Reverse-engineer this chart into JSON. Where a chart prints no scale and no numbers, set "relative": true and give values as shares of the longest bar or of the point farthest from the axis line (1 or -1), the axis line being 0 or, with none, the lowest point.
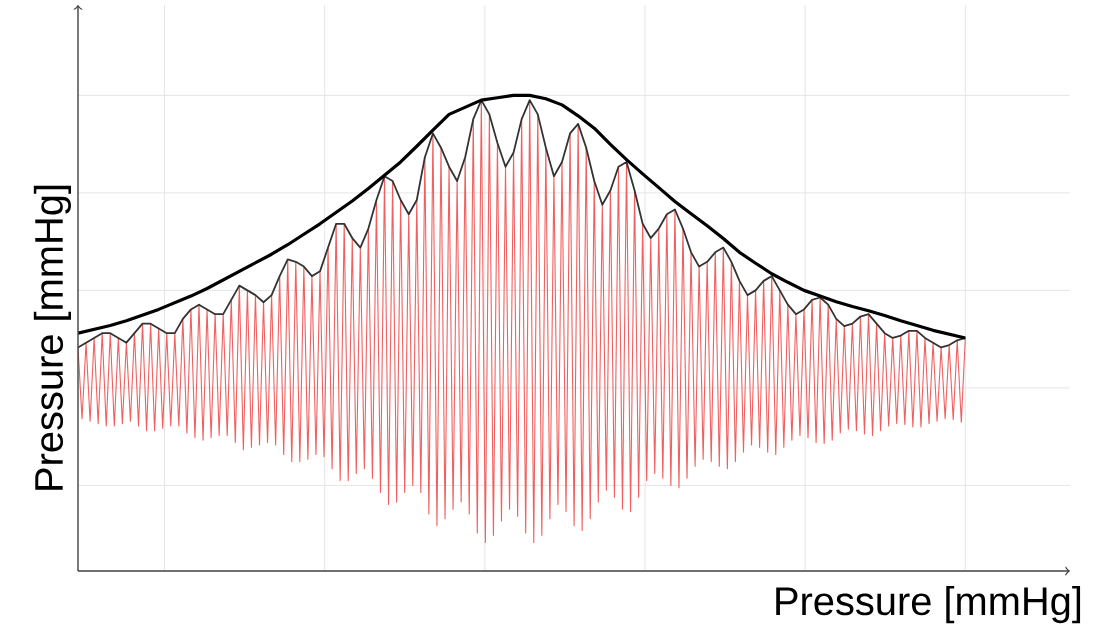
{
  "chart_data": {
    "type": "line",
    "relative": true,
    "grid": true,
    "tick_labels": false,
    "marker": "none",
    "xlabel": "Pressure [mmHg]",
    "ylabel": "Pressure [mmHg]",
    "categories": [
      null,
      null,
      null,
      null,
      null,
      null,
      null,
      null,
      null,
      null,
      null,
      null,
      null,
      null,
      null,
      null,
      null,
      null,
      null,
      null,
      null,
      null,
      null,
      null,
      null,
      null,
      null,
      null,
      null,
      null,
      null,
      null,
      null,
      null,
      null,
      null,
      null,
      null,
      null,
      null,
      null,
      null,
      null,
      null,
      null,
      null,
      null,
      null,
      null,
      null,
      null,
      null,
      null,
      null,
      null,
      null,
      null,
      null,
      null,
      null,
      null,
      null,
      null,
      null,
      null,
      null,
      null,
      null,
      null,
      null,
      null,
      null,
      null,
      null,
      null,
      null,
      null,
      null,
      null,
      null,
      null,
      null,
      null,
      null,
      null,
      null,
      null,
      null,
      null,
      null,
      null,
      null,
      null,
      null,
      null,
      null,
      null,
      null,
      null,
      null,
      null,
      null,
      null,
      null,
      null,
      null,
      null,
      null,
      null,
      null,
      null,
      null,
      null,
      null,
      null,
      null,
      null,
      null,
      null,
      null,
      null,
      null,
      null,
      null,
      null,
      null,
      null,
      null,
      null,
      null,
      null,
      null,
      null,
      null,
      null,
      null,
      null,
      null,
      null,
      null,
      null,
      null,
      null,
      null,
      null,
      null,
      null,
      null,
      null,
      null,
      null,
      null,
      null,
      null,
      null,
      null,
      null,
      null,
      null,
      null,
      null,
      null,
      null,
      null,
      null,
      null,
      null,
      null,
      null,
      null,
      null,
      null,
      null,
      null,
      null,
      null,
      null,
      null,
      null,
      null,
      null,
      null,
      null,
      null,
      null,
      null,
      null,
      null,
      null,
      null,
      null,
      null,
      null,
      null,
      null,
      null,
      null,
      null,
      null,
      null,
      null,
      null,
      null,
      null,
      null,
      null,
      null,
      null,
      null,
      null,
      null,
      null,
      null,
      null,
      null,
      null,
      null,
      null,
      null,
      null,
      null
    ],
    "series": [
      {
        "color": "#f06060",
        "values": [
          0.47,
          0.32,
          0.48,
          0.315,
          0.49,
          0.31,
          0.5,
          0.305,
          0.5,
          0.305,
          0.49,
          0.31,
          0.48,
          0.315,
          0.5,
          0.305,
          0.52,
          0.295,
          0.52,
          0.295,
          0.51,
          0.3,
          0.5,
          0.305,
          0.5,
          0.305,
          0.53,
          0.29,
          0.55,
          0.28,
          0.56,
          0.275,
          0.55,
          0.28,
          0.54,
          0.285,
          0.54,
          0.285,
          0.57,
          0.27,
          0.6,
          0.255,
          0.59,
          0.26,
          0.58,
          0.265,
          0.565,
          0.27,
          0.58,
          0.265,
          0.62,
          0.245,
          0.655,
          0.23,
          0.65,
          0.23,
          0.64,
          0.235,
          0.62,
          0.245,
          0.63,
          0.24,
          0.68,
          0.215,
          0.73,
          0.19,
          0.73,
          0.19,
          0.7,
          0.205,
          0.68,
          0.215,
          0.72,
          0.195,
          0.78,
          0.165,
          0.83,
          0.14,
          0.82,
          0.145,
          0.78,
          0.165,
          0.75,
          0.18,
          0.78,
          0.165,
          0.87,
          0.12,
          0.92,
          0.095,
          0.89,
          0.11,
          0.85,
          0.13,
          0.82,
          0.145,
          0.87,
          0.12,
          0.95,
          0.08,
          0.99,
          0.06,
          0.96,
          0.075,
          0.9,
          0.105,
          0.85,
          0.13,
          0.88,
          0.115,
          0.95,
          0.08,
          0.99,
          0.06,
          0.96,
          0.075,
          0.89,
          0.11,
          0.83,
          0.14,
          0.86,
          0.125,
          0.92,
          0.095,
          0.94,
          0.085,
          0.89,
          0.11,
          0.82,
          0.145,
          0.77,
          0.17,
          0.8,
          0.155,
          0.85,
          0.13,
          0.86,
          0.125,
          0.8,
          0.155,
          0.73,
          0.19,
          0.7,
          0.205,
          0.72,
          0.195,
          0.75,
          0.18,
          0.76,
          0.175,
          0.72,
          0.195,
          0.67,
          0.22,
          0.64,
          0.235,
          0.65,
          0.23,
          0.67,
          0.22,
          0.68,
          0.215,
          0.65,
          0.23,
          0.61,
          0.25,
          0.58,
          0.265,
          0.59,
          0.26,
          0.61,
          0.25,
          0.62,
          0.245,
          0.59,
          0.26,
          0.56,
          0.275,
          0.54,
          0.285,
          0.55,
          0.28,
          0.57,
          0.27,
          0.575,
          0.268,
          0.56,
          0.275,
          0.53,
          0.29,
          0.515,
          0.298,
          0.52,
          0.295,
          0.535,
          0.288,
          0.54,
          0.285,
          0.52,
          0.295,
          0.5,
          0.305,
          0.49,
          0.31,
          0.495,
          0.308,
          0.505,
          0.303,
          0.505,
          0.303,
          0.49,
          0.31,
          0.48,
          0.315,
          0.47,
          0.32,
          0.475,
          0.318,
          0.485,
          0.313,
          0.49
        ]
      },
      {
        "color": "#333333",
        "values": [
          0.47,
          null,
          0.48,
          null,
          0.49,
          null,
          0.5,
          null,
          0.5,
          null,
          0.49,
          null,
          0.48,
          null,
          0.5,
          null,
          0.52,
          null,
          0.52,
          null,
          0.51,
          null,
          0.5,
          null,
          0.5,
          null,
          0.53,
          null,
          0.55,
          null,
          0.56,
          null,
          0.55,
          null,
          0.54,
          null,
          0.54,
          null,
          0.57,
          null,
          0.6,
          null,
          0.59,
          null,
          0.58,
          null,
          0.565,
          null,
          0.58,
          null,
          0.62,
          null,
          0.655,
          null,
          0.65,
          null,
          0.64,
          null,
          0.62,
          null,
          0.63,
          null,
          0.68,
          null,
          0.73,
          null,
          0.73,
          null,
          0.7,
          null,
          0.68,
          null,
          0.72,
          null,
          0.78,
          null,
          0.83,
          null,
          0.82,
          null,
          0.78,
          null,
          0.75,
          null,
          0.78,
          null,
          0.87,
          null,
          0.92,
          null,
          0.89,
          null,
          0.85,
          null,
          0.82,
          null,
          0.87,
          null,
          0.95,
          null,
          0.99,
          null,
          0.96,
          null,
          0.9,
          null,
          0.85,
          null,
          0.88,
          null,
          0.95,
          null,
          0.99,
          null,
          0.96,
          null,
          0.89,
          null,
          0.83,
          null,
          0.86,
          null,
          0.92,
          null,
          0.94,
          null,
          0.89,
          null,
          0.82,
          null,
          0.77,
          null,
          0.8,
          null,
          0.85,
          null,
          0.86,
          null,
          0.8,
          null,
          0.73,
          null,
          0.7,
          null,
          0.72,
          null,
          0.75,
          null,
          0.76,
          null,
          0.72,
          null,
          0.67,
          null,
          0.64,
          null,
          0.65,
          null,
          0.67,
          null,
          0.68,
          null,
          0.65,
          null,
          0.61,
          null,
          0.58,
          null,
          0.59,
          null,
          0.61,
          null,
          0.62,
          null,
          0.59,
          null,
          0.56,
          null,
          0.54,
          null,
          0.55,
          null,
          0.57,
          null,
          0.575,
          null,
          0.56,
          null,
          0.53,
          null,
          0.515,
          null,
          0.52,
          null,
          0.535,
          null,
          0.54,
          null,
          0.52,
          null,
          0.5,
          null,
          0.49,
          null,
          0.495,
          null,
          0.505,
          null,
          0.505,
          null,
          0.49,
          null,
          0.48,
          null,
          0.47,
          null,
          0.475,
          null,
          0.485,
          null,
          0.49
        ]
      },
      {
        "color": "#000000",
        "values": [
          0.5,
          null,
          null,
          null,
          0.508,
          null,
          null,
          null,
          0.516,
          null,
          null,
          null,
          0.526,
          null,
          null,
          null,
          0.538,
          null,
          null,
          null,
          0.55,
          null,
          null,
          null,
          0.564,
          null,
          null,
          null,
          0.578,
          null,
          null,
          null,
          0.594,
          null,
          null,
          null,
          0.612,
          null,
          null,
          null,
          0.63,
          null,
          null,
          null,
          0.648,
          null,
          null,
          null,
          0.666,
          null,
          null,
          null,
          0.686,
          null,
          null,
          null,
          0.708,
          null,
          null,
          null,
          0.73,
          null,
          null,
          null,
          0.754,
          null,
          null,
          null,
          0.778,
          null,
          null,
          null,
          0.804,
          null,
          null,
          null,
          0.832,
          null,
          null,
          null,
          0.86,
          null,
          null,
          null,
          0.893,
          null,
          null,
          null,
          0.927,
          null,
          null,
          null,
          0.96,
          null,
          null,
          null,
          0.975,
          null,
          null,
          null,
          0.99,
          null,
          null,
          null,
          0.995,
          null,
          null,
          null,
          1.0,
          null,
          null,
          null,
          1.0,
          null,
          null,
          null,
          0.993,
          null,
          null,
          null,
          0.98,
          null,
          null,
          null,
          0.957,
          null,
          null,
          null,
          0.931,
          null,
          null,
          null,
          0.897,
          null,
          null,
          null,
          0.865,
          null,
          null,
          null,
          0.835,
          null,
          null,
          null,
          0.806,
          null,
          null,
          null,
          0.777,
          null,
          null,
          null,
          0.751,
          null,
          null,
          null,
          0.726,
          null,
          null,
          null,
          0.699,
          null,
          null,
          null,
          0.67,
          null,
          null,
          null,
          0.647,
          null,
          null,
          null,
          0.625,
          null,
          null,
          null,
          0.607,
          null,
          null,
          null,
          0.59,
          null,
          null,
          null,
          0.578,
          null,
          null,
          null,
          0.566,
          null,
          null,
          null,
          0.556,
          null,
          null,
          null,
          0.547,
          null,
          null,
          null,
          0.537,
          null,
          null,
          null,
          0.526,
          null,
          null,
          null,
          0.516,
          null,
          null,
          null,
          0.506,
          null,
          null,
          null,
          0.498,
          null,
          null,
          null,
          0.49
        ]
      }
    ]
  }
}
